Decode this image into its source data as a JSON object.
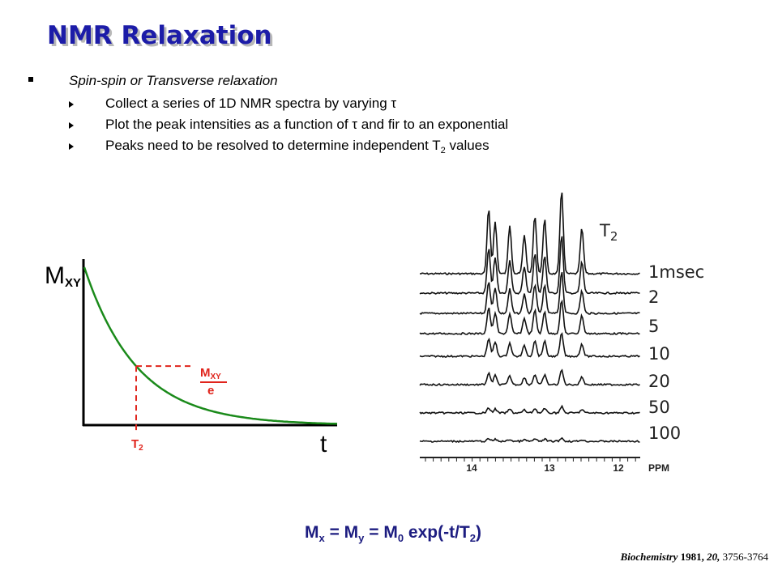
{
  "title": "NMR Relaxation",
  "bullet": {
    "text": "Spin-spin or Transverse relaxation",
    "items": [
      [
        "Collect a series of 1D NMR spectra by varying τ"
      ],
      [
        "Plot the peak intensities as a function of τ and fir to an exponential"
      ],
      [
        "Peaks need to be resolved to determine independent T",
        "2",
        " values"
      ]
    ]
  },
  "decay": {
    "y_label": [
      "M",
      "XY"
    ],
    "x_label": "t",
    "t2_label": [
      "T",
      "2"
    ],
    "fraction": [
      "M",
      "XY",
      "e"
    ]
  },
  "spectra": {
    "t2_label": [
      "T",
      "2"
    ],
    "delays": [
      "1msec",
      "2",
      "5",
      "10",
      "20",
      "50",
      "100"
    ],
    "ppm_ticks": [
      "14",
      "13",
      "12"
    ],
    "ppm_unit": "PPM"
  },
  "equation": [
    "M",
    "x",
    " = M",
    "y",
    " = M",
    "0",
    " exp(-t/T",
    "2",
    ")"
  ],
  "citation": [
    "Biochemistry",
    " 1981,",
    " 20,",
    " 3756-3764"
  ]
}
